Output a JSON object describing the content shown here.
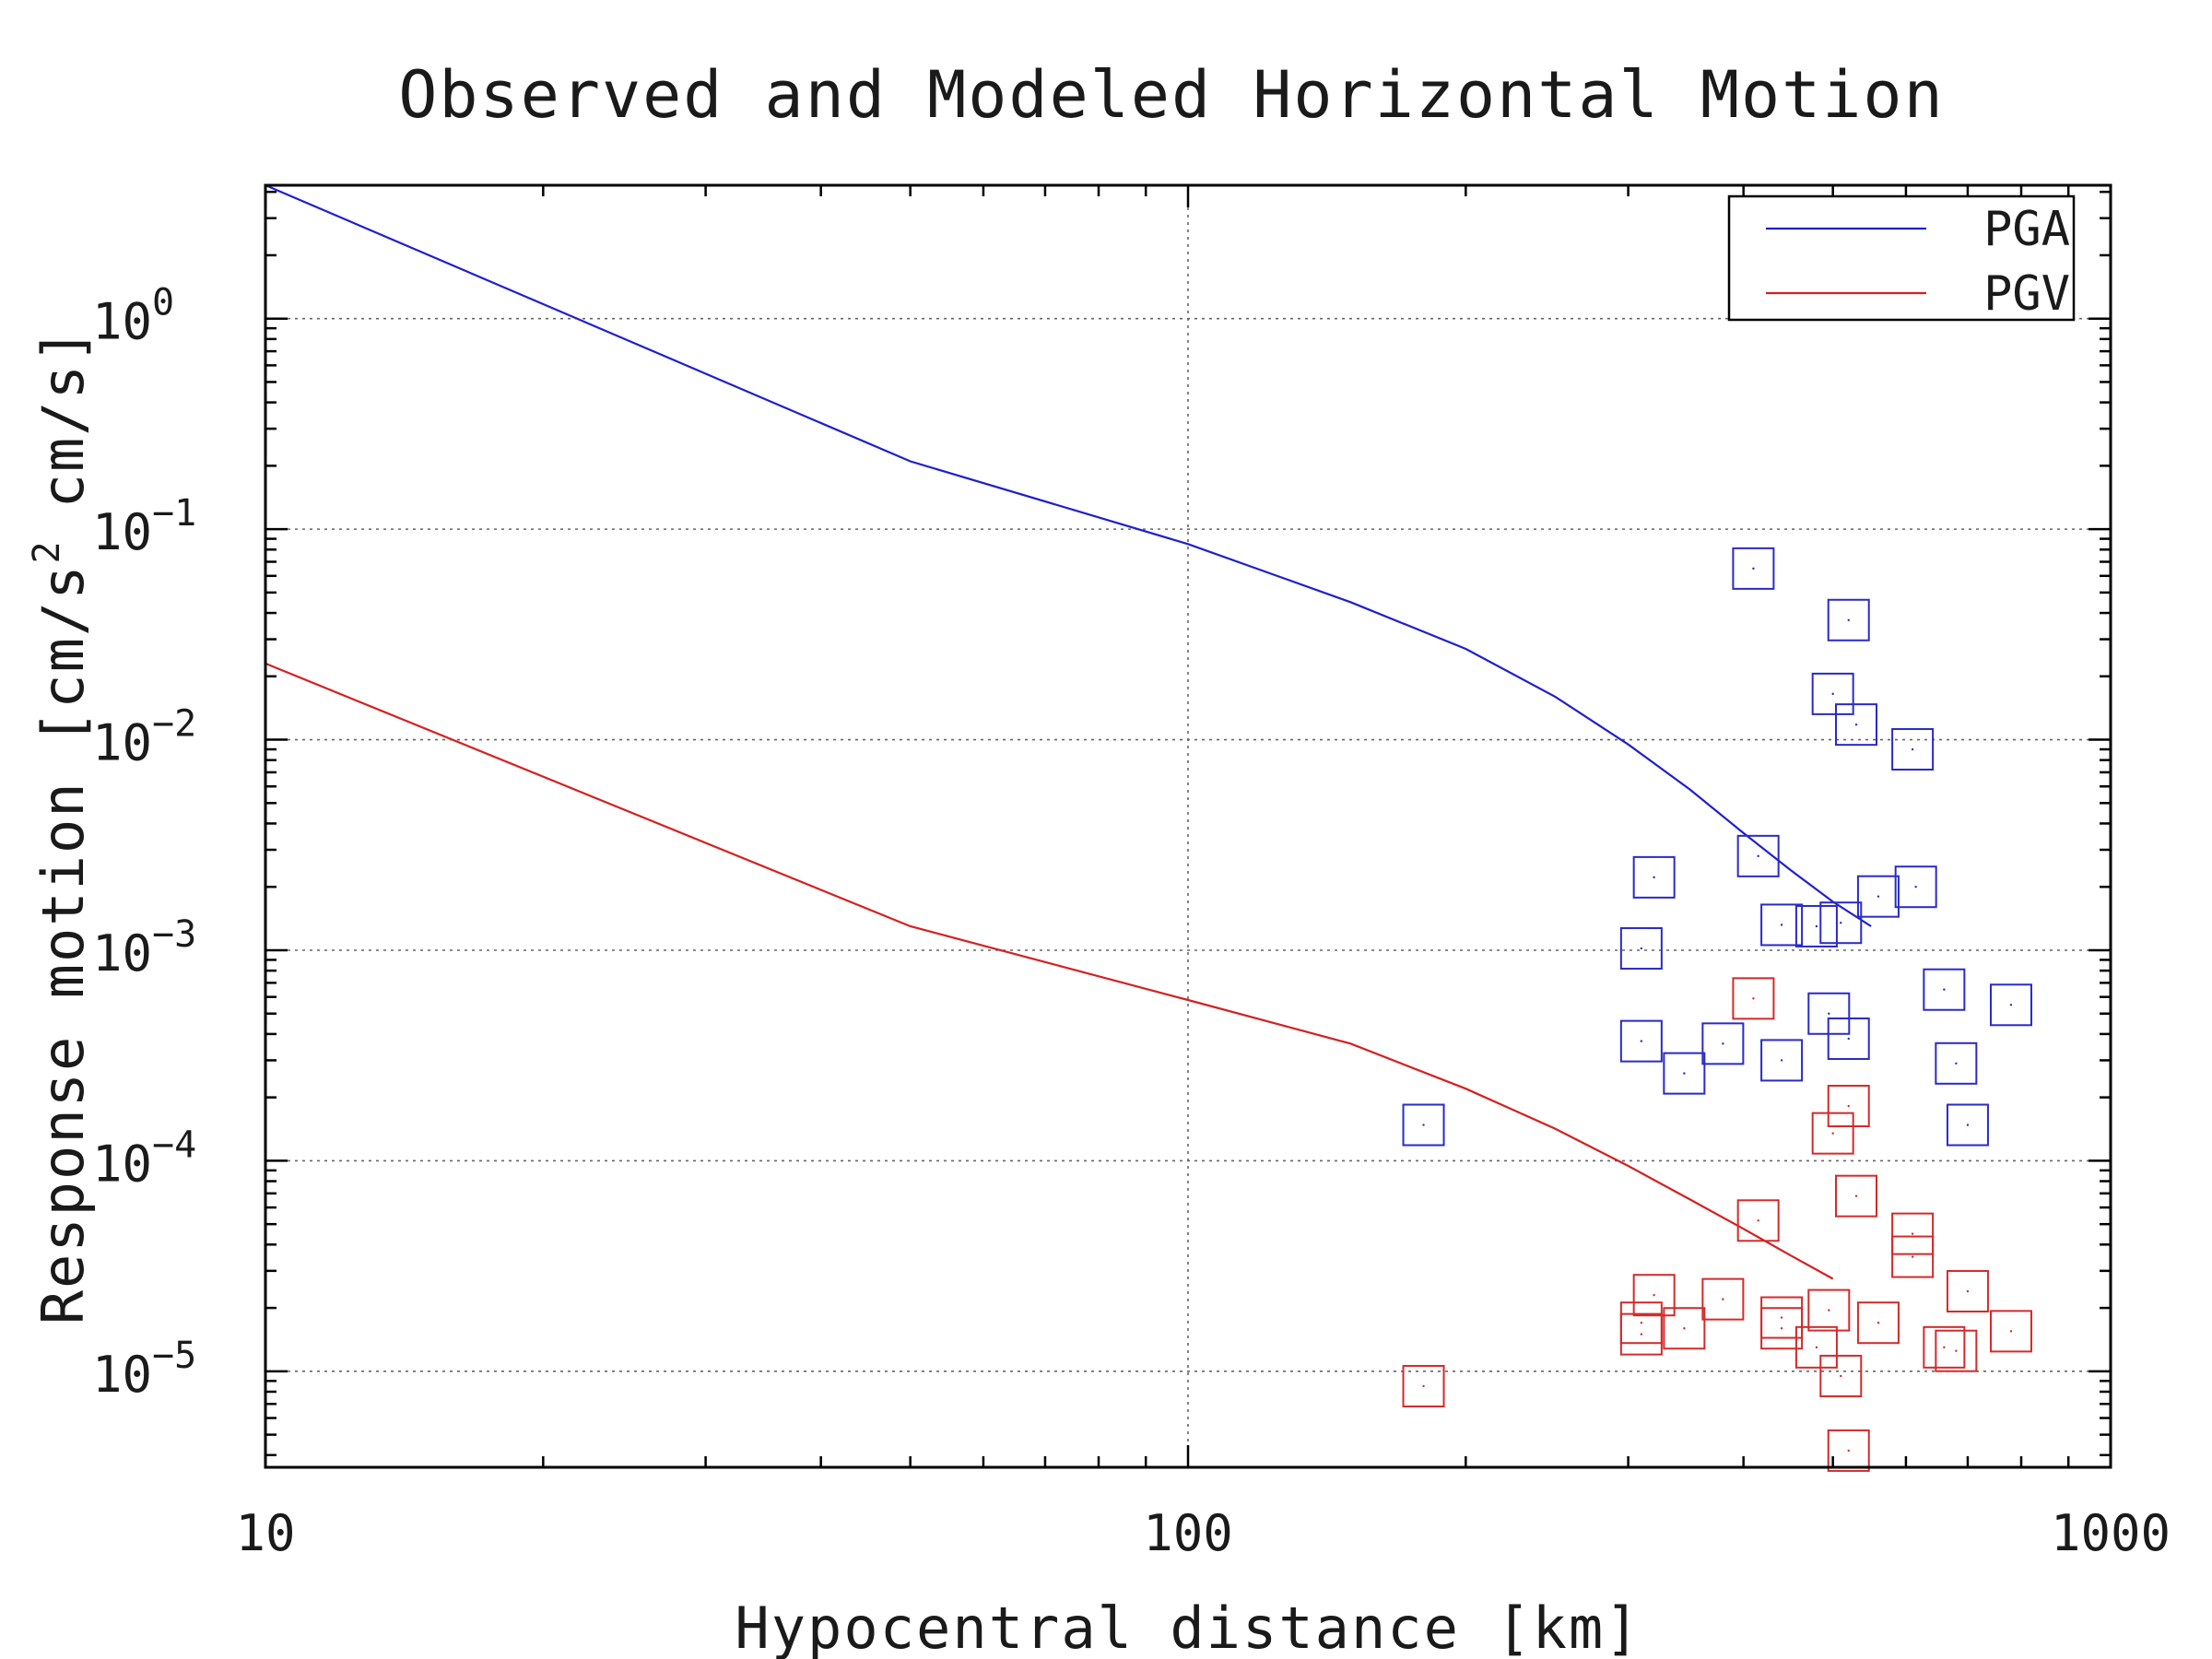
{
  "chart_data": {
    "type": "scatter",
    "title": "Observed and Modeled Horizontal Motion",
    "xlabel": "Hypocentral distance [km]",
    "ylabel": "Response motion [cm/s² cm/s]",
    "ylabel_parts": {
      "main": "Response motion [cm/s",
      "sup": "2",
      "tail": "cm/s]"
    },
    "x_scale": "log",
    "y_scale": "log",
    "xlim": [
      10,
      1000
    ],
    "ylim": [
      3.5e-06,
      4.3
    ],
    "grid": true,
    "legend_position": "top-right",
    "x_ticks": [
      {
        "value": 10,
        "label": "10"
      },
      {
        "value": 100,
        "label": "100"
      },
      {
        "value": 1000,
        "label": "1000"
      }
    ],
    "y_ticks": [
      {
        "value": 1,
        "base": "10",
        "exp": "0"
      },
      {
        "value": 0.1,
        "base": "10",
        "exp": "−1"
      },
      {
        "value": 0.01,
        "base": "10",
        "exp": "−2"
      },
      {
        "value": 0.001,
        "base": "10",
        "exp": "−3"
      },
      {
        "value": 0.0001,
        "base": "10",
        "exp": "−4"
      },
      {
        "value": 1e-05,
        "base": "10",
        "exp": "−5"
      }
    ],
    "series": [
      {
        "name": "PGA",
        "kind": "line",
        "color": "#1f1fcc",
        "points": [
          [
            10,
            4.3
          ],
          [
            50,
            0.21
          ],
          [
            100,
            0.085
          ],
          [
            150,
            0.045
          ],
          [
            200,
            0.027
          ],
          [
            250,
            0.016
          ],
          [
            300,
            0.0095
          ],
          [
            350,
            0.0058
          ],
          [
            400,
            0.0036
          ],
          [
            450,
            0.0024
          ],
          [
            500,
            0.0017
          ],
          [
            550,
            0.0013
          ]
        ]
      },
      {
        "name": "PGV",
        "kind": "line",
        "color": "#d42020",
        "points": [
          [
            10,
            0.023
          ],
          [
            50,
            0.0013
          ],
          [
            100,
            0.00058
          ],
          [
            150,
            0.00036
          ],
          [
            200,
            0.00022
          ],
          [
            250,
            0.000142
          ],
          [
            300,
            9.45e-05
          ],
          [
            350,
            6.55e-05
          ],
          [
            400,
            4.75e-05
          ],
          [
            450,
            3.55e-05
          ],
          [
            500,
            2.75e-05
          ]
        ]
      },
      {
        "kind": "markers",
        "marker": "square",
        "color": "#2a2ac8",
        "points": [
          [
            180,
            0.000148
          ],
          [
            310,
            0.00102
          ],
          [
            320,
            0.00222
          ],
          [
            310,
            0.00037
          ],
          [
            345,
            0.00026
          ],
          [
            380,
            0.00036
          ],
          [
            410,
            0.065
          ],
          [
            415,
            0.0028
          ],
          [
            440,
            0.00132
          ],
          [
            440,
            0.0003
          ],
          [
            480,
            0.0013
          ],
          [
            495,
            0.0005
          ],
          [
            500,
            0.0165
          ],
          [
            510,
            0.00135
          ],
          [
            520,
            0.037
          ],
          [
            520,
            0.00038
          ],
          [
            530,
            0.0118
          ],
          [
            560,
            0.0018
          ],
          [
            610,
            0.009
          ],
          [
            615,
            0.002
          ],
          [
            660,
            0.00065
          ],
          [
            680,
            0.00029
          ],
          [
            700,
            0.000148
          ],
          [
            780,
            0.00055
          ]
        ]
      },
      {
        "kind": "markers",
        "marker": "square",
        "color": "#d42a2a",
        "points": [
          [
            180,
            8.5e-06
          ],
          [
            310,
            1.7e-05
          ],
          [
            310,
            1.5e-05
          ],
          [
            320,
            2.3e-05
          ],
          [
            345,
            1.6e-05
          ],
          [
            380,
            2.2e-05
          ],
          [
            410,
            0.00059
          ],
          [
            415,
            5.2e-05
          ],
          [
            440,
            1.8e-05
          ],
          [
            440,
            1.6e-05
          ],
          [
            480,
            1.3e-05
          ],
          [
            495,
            1.95e-05
          ],
          [
            500,
            0.000135
          ],
          [
            510,
            9.5e-06
          ],
          [
            520,
            0.000182
          ],
          [
            520,
            4.2e-06
          ],
          [
            530,
            6.8e-05
          ],
          [
            560,
            1.7e-05
          ],
          [
            610,
            4.5e-05
          ],
          [
            610,
            3.5e-05
          ],
          [
            660,
            1.3e-05
          ],
          [
            680,
            1.25e-05
          ],
          [
            700,
            2.4e-05
          ],
          [
            780,
            1.55e-05
          ]
        ]
      }
    ]
  }
}
